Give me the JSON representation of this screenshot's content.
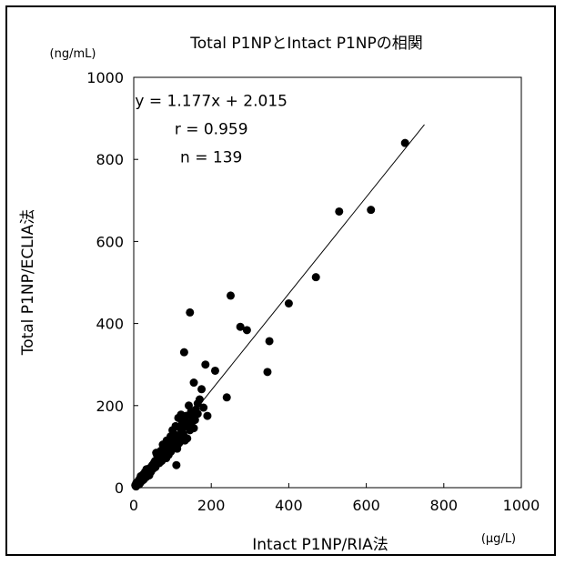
{
  "chart_data": {
    "type": "scatter",
    "title": "Total P1NPとIntact P1NPの相関",
    "xlabel": "Intact P1NP/RIA法",
    "ylabel": "Total P1NP/ECLIA法",
    "x_unit": "(μg/L)",
    "y_unit": "(ng/mL)",
    "xlim": [
      0,
      1000
    ],
    "ylim": [
      0,
      1000
    ],
    "xticks": [
      0,
      200,
      400,
      600,
      800,
      1000
    ],
    "yticks": [
      0,
      200,
      400,
      600,
      800,
      1000
    ],
    "grid": false,
    "annotations": [
      "y = 1.177x + 2.015",
      "r = 0.959",
      "n = 139"
    ],
    "regression": {
      "slope": 1.177,
      "intercept": 2.015,
      "x_range": [
        0,
        750
      ]
    },
    "points": [
      [
        700,
        840
      ],
      [
        530,
        673
      ],
      [
        612,
        677
      ],
      [
        470,
        513
      ],
      [
        400,
        449
      ],
      [
        250,
        468
      ],
      [
        275,
        392
      ],
      [
        292,
        384
      ],
      [
        350,
        357
      ],
      [
        345,
        282
      ],
      [
        145,
        427
      ],
      [
        130,
        330
      ],
      [
        185,
        300
      ],
      [
        210,
        285
      ],
      [
        240,
        220
      ],
      [
        155,
        256
      ],
      [
        175,
        240
      ],
      [
        165,
        205
      ],
      [
        160,
        190
      ],
      [
        150,
        175
      ],
      [
        140,
        150
      ],
      [
        128,
        130
      ],
      [
        120,
        145
      ],
      [
        110,
        120
      ],
      [
        100,
        140
      ],
      [
        92,
        105
      ],
      [
        85,
        115
      ],
      [
        78,
        95
      ],
      [
        70,
        90
      ],
      [
        60,
        80
      ],
      [
        55,
        65
      ],
      [
        48,
        55
      ],
      [
        40,
        45
      ],
      [
        30,
        35
      ],
      [
        22,
        25
      ],
      [
        15,
        15
      ],
      [
        10,
        10
      ],
      [
        110,
        55
      ],
      [
        170,
        215
      ],
      [
        135,
        175
      ],
      [
        125,
        160
      ],
      [
        115,
        170
      ],
      [
        105,
        130
      ],
      [
        95,
        125
      ],
      [
        88,
        100
      ],
      [
        80,
        85
      ],
      [
        75,
        105
      ],
      [
        68,
        75
      ],
      [
        62,
        70
      ],
      [
        58,
        85
      ],
      [
        52,
        60
      ],
      [
        45,
        50
      ],
      [
        38,
        40
      ],
      [
        33,
        45
      ],
      [
        27,
        30
      ],
      [
        20,
        20
      ],
      [
        18,
        28
      ],
      [
        12,
        14
      ],
      [
        8,
        6
      ],
      [
        5,
        4
      ],
      [
        150,
        160
      ],
      [
        145,
        140
      ],
      [
        138,
        120
      ],
      [
        132,
        115
      ],
      [
        118,
        110
      ],
      [
        112,
        95
      ],
      [
        102,
        98
      ],
      [
        96,
        88
      ],
      [
        90,
        80
      ],
      [
        84,
        72
      ],
      [
        72,
        65
      ],
      [
        66,
        60
      ],
      [
        61,
        58
      ],
      [
        56,
        50
      ],
      [
        50,
        48
      ],
      [
        44,
        38
      ],
      [
        40,
        30
      ],
      [
        36,
        34
      ],
      [
        31,
        25
      ],
      [
        26,
        20
      ],
      [
        24,
        32
      ],
      [
        19,
        16
      ],
      [
        16,
        22
      ],
      [
        14,
        8
      ],
      [
        11,
        12
      ],
      [
        165,
        180
      ],
      [
        158,
        165
      ],
      [
        122,
        178
      ],
      [
        108,
        150
      ],
      [
        98,
        112
      ],
      [
        86,
        92
      ],
      [
        76,
        82
      ],
      [
        64,
        70
      ],
      [
        57,
        62
      ],
      [
        49,
        45
      ],
      [
        42,
        48
      ],
      [
        35,
        28
      ],
      [
        29,
        38
      ],
      [
        23,
        18
      ],
      [
        17,
        12
      ],
      [
        13,
        18
      ],
      [
        9,
        9
      ],
      [
        7,
        12
      ],
      [
        6,
        3
      ],
      [
        4,
        6
      ],
      [
        180,
        195
      ],
      [
        190,
        175
      ],
      [
        142,
        200
      ],
      [
        126,
        145
      ],
      [
        116,
        125
      ],
      [
        106,
        118
      ],
      [
        94,
        108
      ],
      [
        82,
        98
      ],
      [
        74,
        78
      ],
      [
        67,
        82
      ],
      [
        59,
        66
      ],
      [
        53,
        56
      ],
      [
        47,
        52
      ],
      [
        41,
        42
      ],
      [
        37,
        36
      ],
      [
        32,
        30
      ],
      [
        28,
        26
      ],
      [
        25,
        22
      ],
      [
        21,
        24
      ],
      [
        18,
        15
      ],
      [
        15,
        18
      ],
      [
        12,
        10
      ],
      [
        10,
        14
      ],
      [
        8,
        8
      ],
      [
        6,
        7
      ],
      [
        155,
        145
      ],
      [
        148,
        185
      ],
      [
        136,
        160
      ],
      [
        124,
        135
      ],
      [
        114,
        105
      ],
      [
        104,
        112
      ],
      [
        93,
        95
      ],
      [
        83,
        88
      ],
      [
        73,
        72
      ]
    ]
  }
}
